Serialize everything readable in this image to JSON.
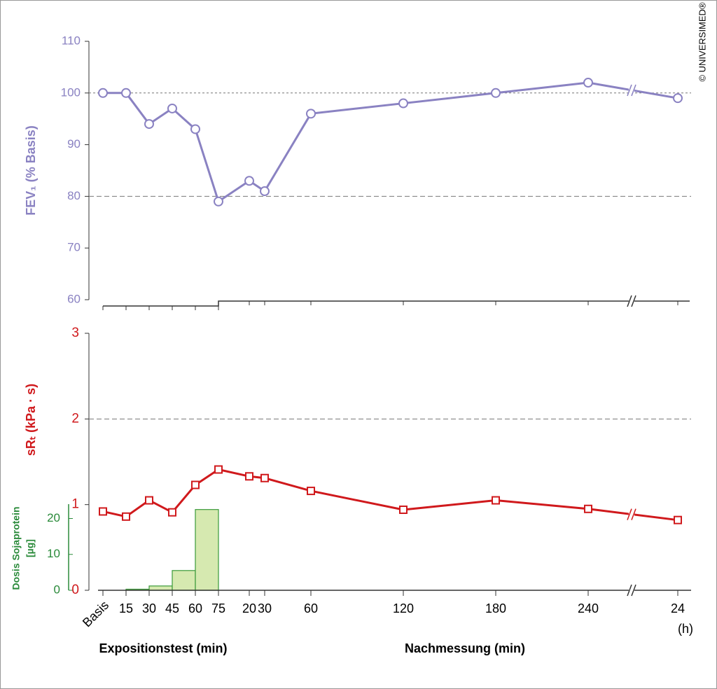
{
  "copyright": "© UNIVERSIMED®",
  "chart_data": [
    {
      "type": "line",
      "ylabel": "FEV₁ (% Basis)",
      "color": "#8a82c2",
      "x": [
        0,
        15,
        30,
        45,
        60,
        75,
        95,
        105,
        135,
        195,
        255,
        315,
        1515
      ],
      "xlim": [
        0,
        1515
      ],
      "series": [
        {
          "name": "FEV₁",
          "color": "#8a82c2",
          "values": [
            100,
            100,
            94,
            97,
            93,
            79,
            83,
            81,
            96,
            98,
            100,
            102,
            99
          ]
        }
      ],
      "ylim": [
        60,
        110
      ],
      "yticks": [
        60,
        70,
        80,
        90,
        100,
        110
      ],
      "hlines": [
        100,
        80
      ],
      "marker": "circle"
    },
    {
      "type": "line",
      "ylabel": "sRₜ (kPa · s)",
      "color": "#d0191c",
      "x": [
        0,
        15,
        30,
        45,
        60,
        75,
        95,
        105,
        135,
        195,
        255,
        315,
        1515
      ],
      "xlim": [
        0,
        1515
      ],
      "xticks": [
        {
          "value": 0,
          "label": "Basis"
        },
        15,
        30,
        45,
        60,
        75,
        {
          "value": 95,
          "label": "20"
        },
        {
          "value": 105,
          "label": "30"
        },
        {
          "value": 135,
          "label": "60"
        },
        {
          "value": 195,
          "label": "120"
        },
        {
          "value": 255,
          "label": "180"
        },
        {
          "value": 315,
          "label": "240"
        },
        {
          "value": 1515,
          "label": "24"
        }
      ],
      "xunit_note": "(h)",
      "xgroups": [
        "Expositionstest (min)",
        "Nachmessung (min)"
      ],
      "series": [
        {
          "name": "sRₜ",
          "color": "#d0191c",
          "values": [
            0.92,
            0.86,
            1.05,
            0.91,
            1.23,
            1.41,
            1.33,
            1.31,
            1.16,
            0.94,
            1.05,
            0.95,
            0.82
          ]
        }
      ],
      "ylim": [
        0,
        3
      ],
      "yticks": [
        0,
        1,
        2,
        3
      ],
      "hlines": [
        2
      ],
      "marker": "square"
    },
    {
      "type": "histogram",
      "ylabel": [
        "Dosis Sojaprotein",
        "[µg]"
      ],
      "color": "#d6e9b0",
      "edgecolor": "#3a9a3a",
      "axiscolor": "#2a8a3a",
      "bins": [
        15,
        30,
        45,
        60,
        75
      ],
      "values": [
        0.3,
        1.2,
        5.5,
        22.5
      ],
      "xlim": [
        0,
        1515
      ],
      "ylim": [
        0,
        24
      ],
      "yticks": [
        0,
        10,
        20
      ]
    }
  ]
}
